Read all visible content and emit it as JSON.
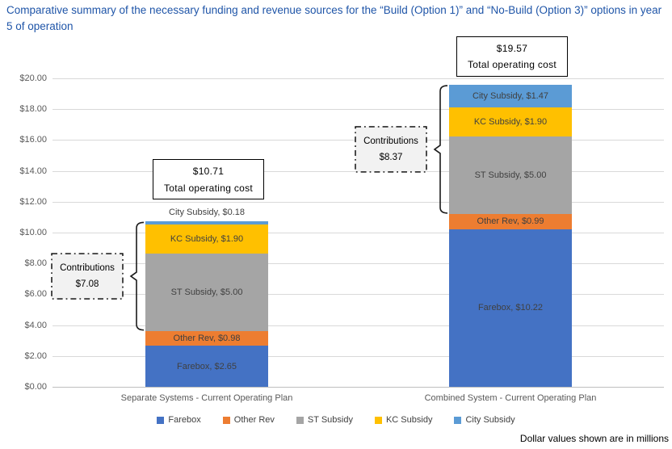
{
  "title": "Comparative summary of the necessary funding and revenue sources for the “Build (Option 1)” and “No-Build (Option 3)” options in year 5 of operation",
  "footer_note": "Dollar values shown are in millions",
  "colors": {
    "title_text": "#1F55A8",
    "axis_text": "#595959",
    "segment_text": "#404040",
    "gridline": "#D9D9D9",
    "annotation_fill": "#F2F2F2",
    "annotation_border": "#000000"
  },
  "chart_data": {
    "type": "bar",
    "stacked": true,
    "grid": true,
    "categories": [
      "Separate Systems - Current Operating Plan",
      "Combined System - Current Operating Plan"
    ],
    "series": [
      {
        "name": "Farebox",
        "color": "#4472C4",
        "values": [
          2.65,
          10.22
        ]
      },
      {
        "name": "Other Rev",
        "color": "#ED7D31",
        "values": [
          0.98,
          0.99
        ]
      },
      {
        "name": "ST Subsidy",
        "color": "#A5A5A5",
        "values": [
          5.0,
          5.0
        ]
      },
      {
        "name": "KC Subsidy",
        "color": "#FFC000",
        "values": [
          1.9,
          1.9
        ]
      },
      {
        "name": "City Subsidy",
        "color": "#5B9BD5",
        "values": [
          0.18,
          1.47
        ]
      }
    ],
    "segment_labels": [
      [
        "Farebox, $2.65",
        "Other Rev, $0.98",
        "ST Subsidy, $5.00",
        "KC Subsidy, $1.90",
        "City Subsidy, $0.18"
      ],
      [
        "Farebox, $10.22",
        "Other Rev, $0.99",
        "ST Subsidy, $5.00",
        "KC Subsidy, $1.90",
        "City Subsidy, $1.47"
      ]
    ],
    "totals": {
      "label": "Total operating cost",
      "values": [
        10.71,
        19.57
      ],
      "display": [
        "$10.71",
        "$19.57"
      ]
    },
    "contributions": {
      "label": "Contributions",
      "values": [
        7.08,
        8.37
      ],
      "display": [
        "$7.08",
        "$8.37"
      ],
      "series_included": [
        "ST Subsidy",
        "KC Subsidy",
        "City Subsidy"
      ]
    },
    "y_axis": {
      "min": 0,
      "max": 20,
      "step": 2,
      "tick_prefix": "$",
      "tick_decimals": 2
    },
    "legend": {
      "position": "bottom",
      "entries": [
        "Farebox",
        "Other Rev",
        "ST Subsidy",
        "KC Subsidy",
        "City Subsidy"
      ]
    }
  }
}
